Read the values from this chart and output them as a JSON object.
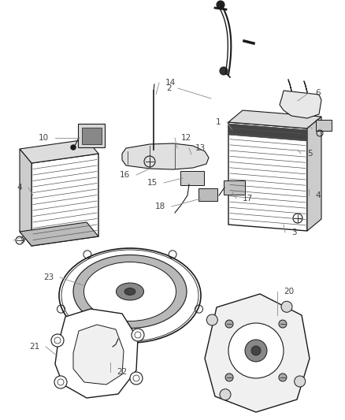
{
  "bg_color": "#ffffff",
  "line_color": "#1a1a1a",
  "label_color": "#555555",
  "fig_width": 4.38,
  "fig_height": 5.33,
  "dpi": 100
}
